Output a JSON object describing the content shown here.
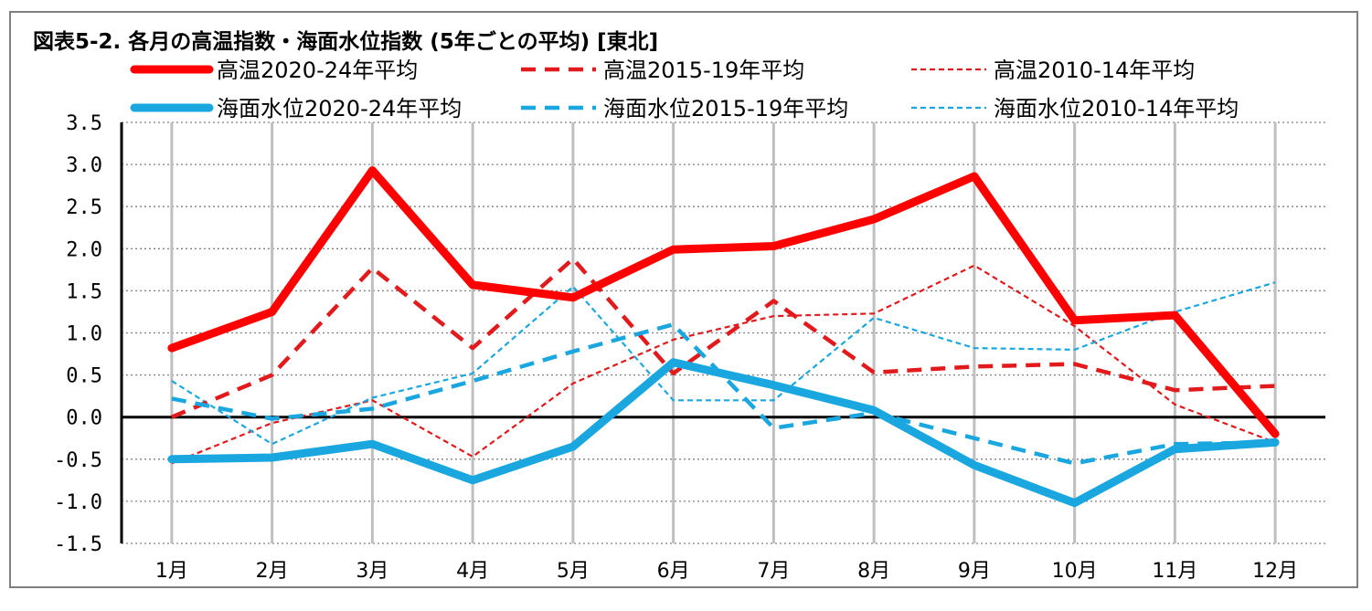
{
  "title": "図表5-2. 各月の高温指数・海面水位指数 (5年ごとの平均) [東北]",
  "colors": {
    "red": "#ff0000",
    "red_dark": "#e31a1c",
    "blue": "#1aa7e0",
    "grid": "#bfbfbf",
    "axis": "#000000"
  },
  "chart_data": {
    "type": "line",
    "categories": [
      "1月",
      "2月",
      "3月",
      "4月",
      "5月",
      "6月",
      "7月",
      "8月",
      "9月",
      "10月",
      "11月",
      "12月"
    ],
    "ylim": [
      -1.5,
      3.5
    ],
    "yticks": [
      "3.5",
      "3.0",
      "2.5",
      "2.0",
      "1.5",
      "1.0",
      "0.5",
      "0.0",
      "-0.5",
      "-1.0",
      "-1.5"
    ],
    "ytick_values": [
      3.5,
      3.0,
      2.5,
      2.0,
      1.5,
      1.0,
      0.5,
      0.0,
      -0.5,
      -1.0,
      -1.5
    ],
    "grid": true,
    "legend_position": "top",
    "series": [
      {
        "name": "高温2020-24年平均",
        "color": "#ff0000",
        "style": "solid-thick",
        "values": [
          0.82,
          1.25,
          2.93,
          1.57,
          1.42,
          1.99,
          2.03,
          2.35,
          2.86,
          1.15,
          1.21,
          -0.2
        ]
      },
      {
        "name": "高温2015-19年平均",
        "color": "#e31a1c",
        "style": "dash-medium",
        "values": [
          0.0,
          0.5,
          1.77,
          0.82,
          1.88,
          0.52,
          1.38,
          0.53,
          0.6,
          0.63,
          0.32,
          0.37
        ]
      },
      {
        "name": "高温2010-14年平均",
        "color": "#e31a1c",
        "style": "dash-thin",
        "values": [
          -0.55,
          -0.07,
          0.2,
          -0.47,
          0.4,
          0.92,
          1.2,
          1.23,
          1.8,
          1.08,
          0.15,
          -0.3
        ]
      },
      {
        "name": "海面水位2020-24年平均",
        "color": "#1aa7e0",
        "style": "solid-thick",
        "values": [
          -0.5,
          -0.48,
          -0.32,
          -0.75,
          -0.35,
          0.65,
          0.38,
          0.08,
          -0.57,
          -1.02,
          -0.38,
          -0.3
        ]
      },
      {
        "name": "海面水位2015-19年平均",
        "color": "#1aa7e0",
        "style": "dash-medium",
        "values": [
          0.22,
          -0.02,
          0.1,
          0.43,
          0.78,
          1.1,
          -0.13,
          0.05,
          -0.25,
          -0.55,
          -0.32,
          -0.3
        ]
      },
      {
        "name": "海面水位2010-14年平均",
        "color": "#1aa7e0",
        "style": "dash-thin",
        "values": [
          0.43,
          -0.32,
          0.23,
          0.52,
          1.55,
          0.2,
          0.2,
          1.18,
          0.82,
          0.8,
          1.25,
          1.6
        ]
      }
    ]
  }
}
